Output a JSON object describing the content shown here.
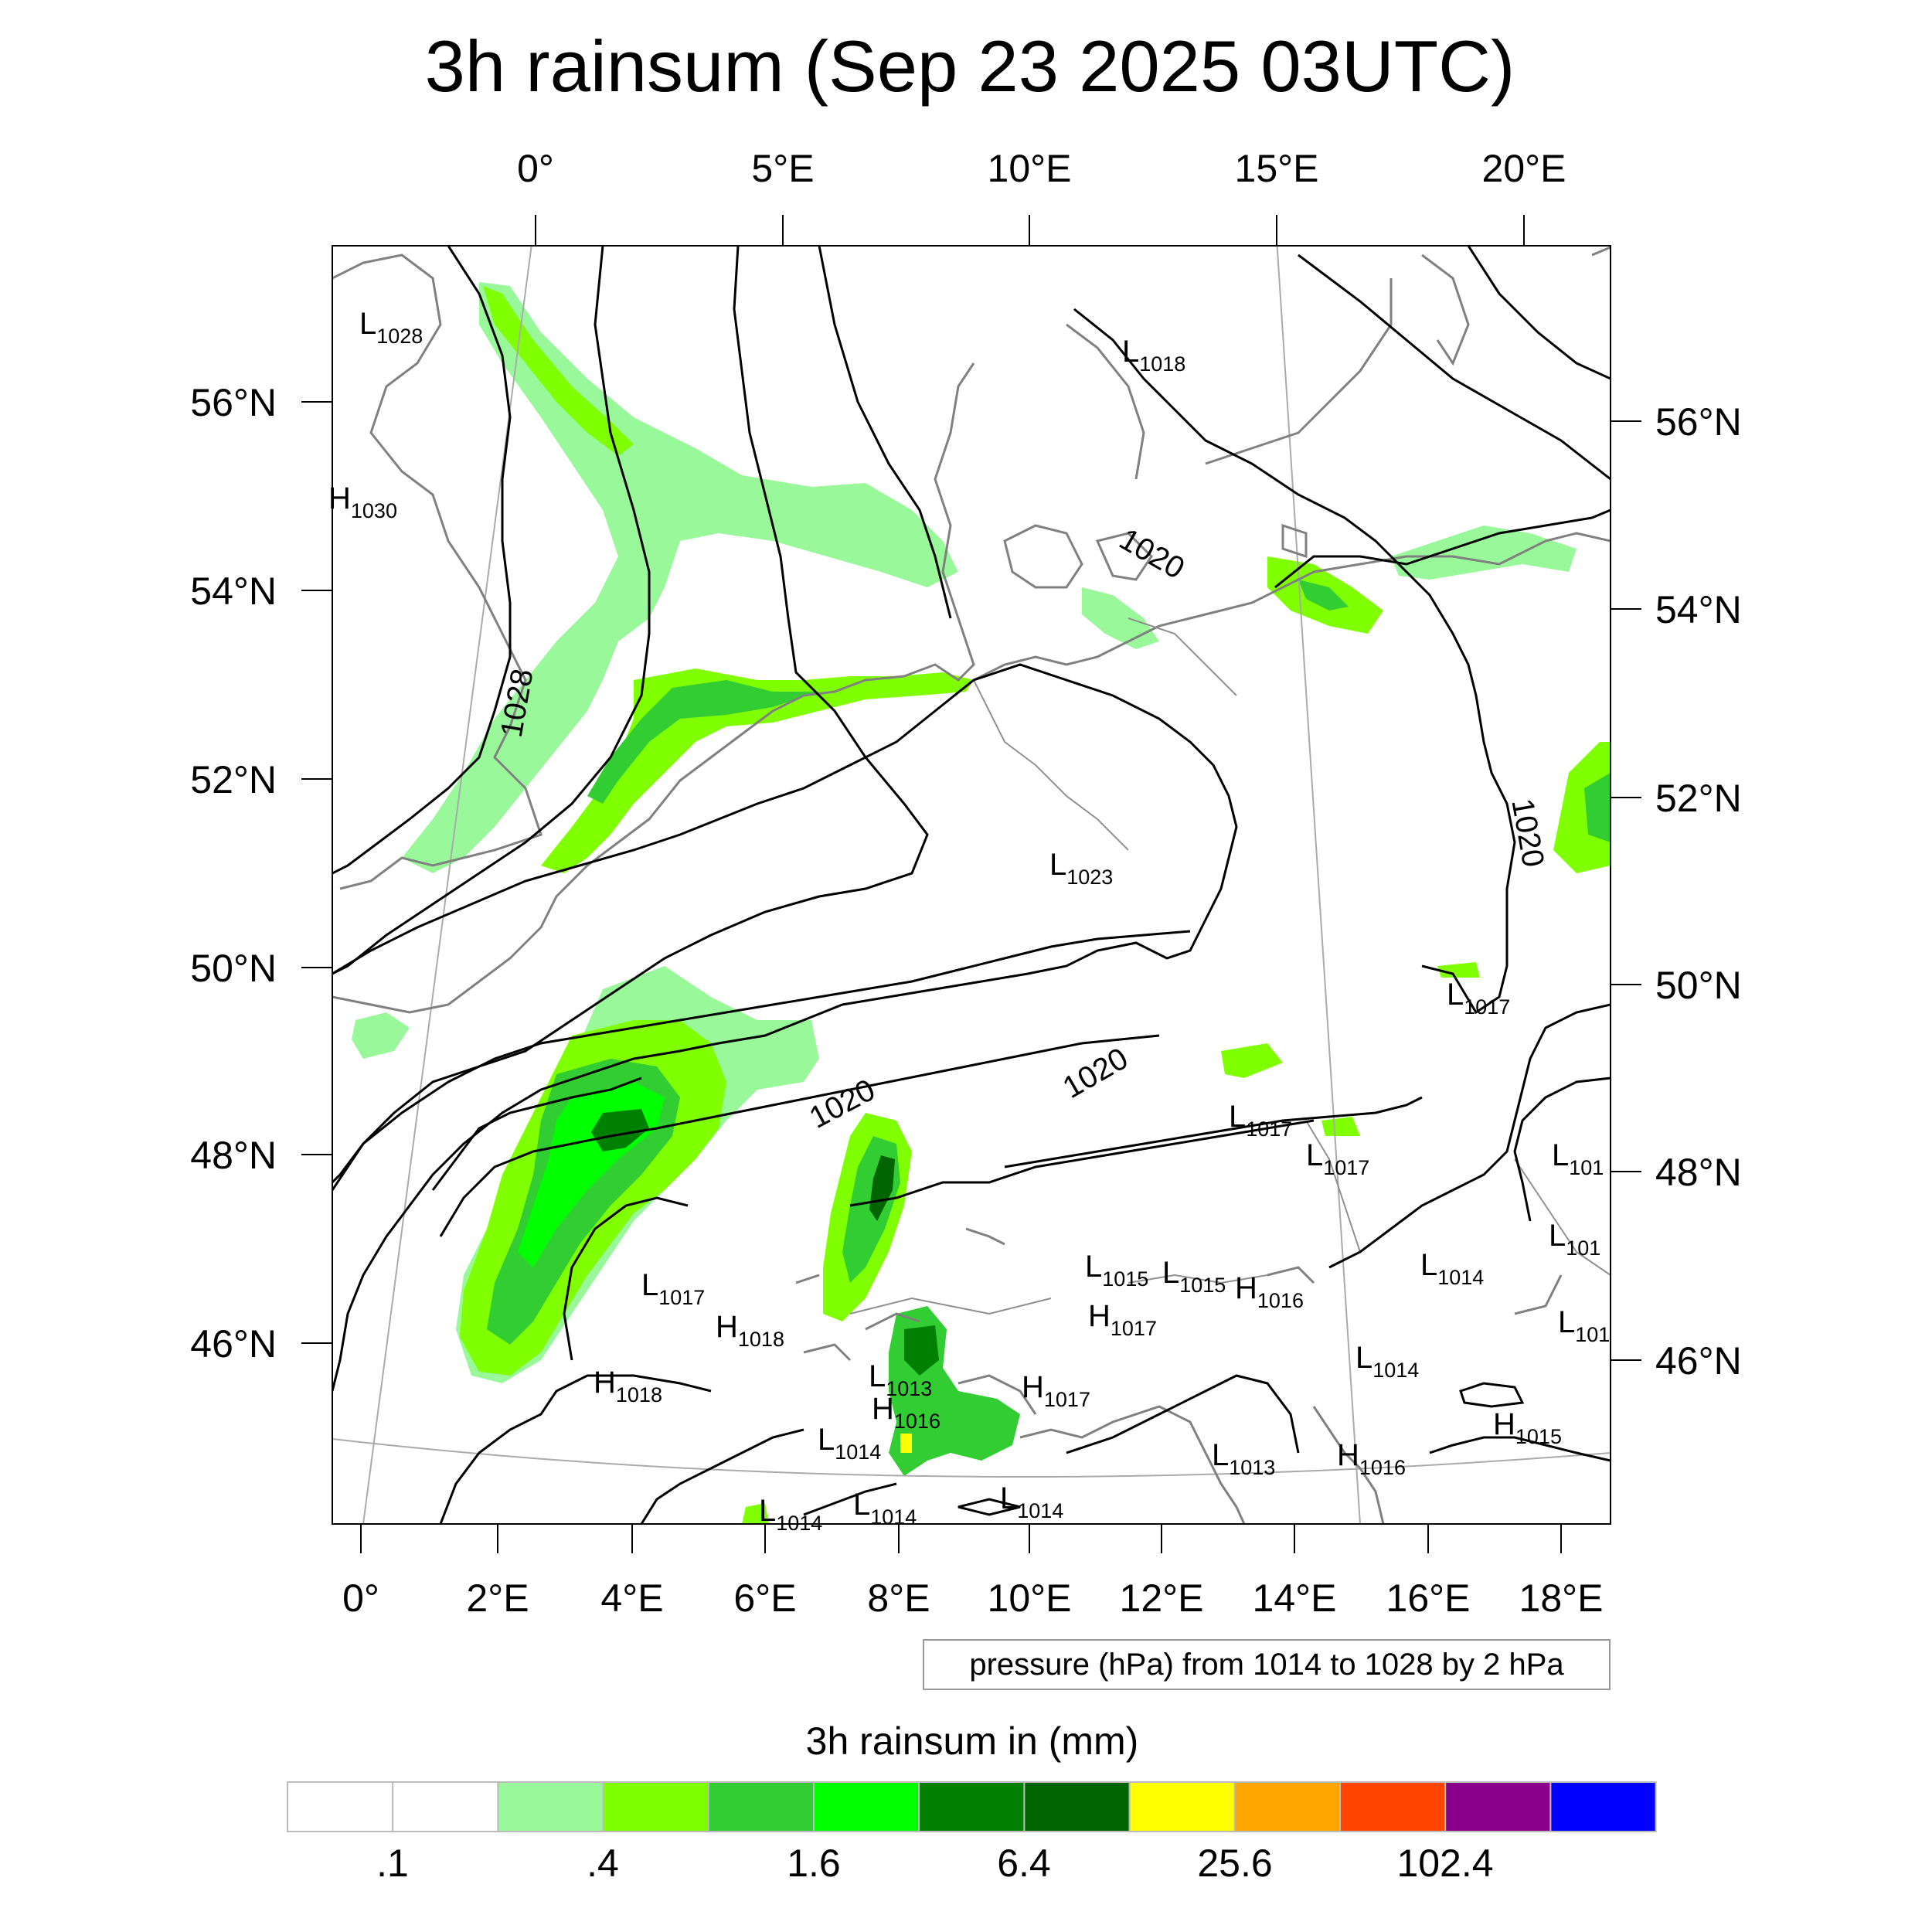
{
  "title": "3h rainsum (Sep 23 2025 03UTC)",
  "top_lon_labels": [
    "0°",
    "5°E",
    "10°E",
    "15°E",
    "20°E"
  ],
  "bottom_lon_labels": [
    "0°",
    "2°E",
    "4°E",
    "6°E",
    "8°E",
    "10°E",
    "12°E",
    "14°E",
    "16°E",
    "18°E"
  ],
  "left_lat_labels": [
    "56°N",
    "54°N",
    "52°N",
    "50°N",
    "48°N",
    "46°N"
  ],
  "right_lat_labels": [
    "56°N",
    "54°N",
    "52°N",
    "50°N",
    "48°N",
    "46°N"
  ],
  "pressure_centers": [
    {
      "type": "L",
      "value": "1028"
    },
    {
      "type": "H",
      "value": "1030"
    },
    {
      "type": "L",
      "value": "1018"
    },
    {
      "type": "L",
      "value": "1023"
    },
    {
      "type": "L",
      "value": "1017"
    },
    {
      "type": "L",
      "value": "1017"
    },
    {
      "type": "L",
      "value": "1017"
    },
    {
      "type": "L",
      "value": "1017"
    },
    {
      "type": "H",
      "value": "1018"
    },
    {
      "type": "H",
      "value": "1018"
    },
    {
      "type": "L",
      "value": "1015"
    },
    {
      "type": "L",
      "value": "1015"
    },
    {
      "type": "H",
      "value": "1016"
    },
    {
      "type": "H",
      "value": "1017"
    },
    {
      "type": "H",
      "value": "1017"
    },
    {
      "type": "L",
      "value": "1013"
    },
    {
      "type": "H",
      "value": "1016"
    },
    {
      "type": "L",
      "value": "1014"
    },
    {
      "type": "L",
      "value": "1014"
    },
    {
      "type": "L",
      "value": "1014"
    },
    {
      "type": "L",
      "value": "1014"
    },
    {
      "type": "L",
      "value": "1014"
    },
    {
      "type": "L",
      "value": "1014"
    },
    {
      "type": "L",
      "value": "1013"
    },
    {
      "type": "H",
      "value": "1016"
    },
    {
      "type": "H",
      "value": "1015"
    },
    {
      "type": "L",
      "value": "101"
    },
    {
      "type": "L",
      "value": "101"
    },
    {
      "type": "L",
      "value": "101"
    }
  ],
  "contour_labels": [
    "1028",
    "1020",
    "1020",
    "1020",
    "1020"
  ],
  "contour_note": "pressure (hPa) from 1014 to 1028 by 2 hPa",
  "colorbar": {
    "title": "3h rainsum in (mm)",
    "labels": [
      ".1",
      ".4",
      "1.6",
      "6.4",
      "25.6",
      "102.4"
    ],
    "colors": [
      "#ffffff",
      "#ffffff",
      "#99f899",
      "#80ff00",
      "#32cd32",
      "#00ff00",
      "#008000",
      "#006400",
      "#ffff00",
      "#ffa500",
      "#ff4500",
      "#8b008b",
      "#0000ff"
    ]
  },
  "rain_colors": {
    "light": "#99f899",
    "lime": "#80ff00",
    "medium": "#32cd32",
    "bright": "#00ff00",
    "dark": "#008000",
    "darkest": "#006400",
    "yellow": "#ffff00"
  }
}
